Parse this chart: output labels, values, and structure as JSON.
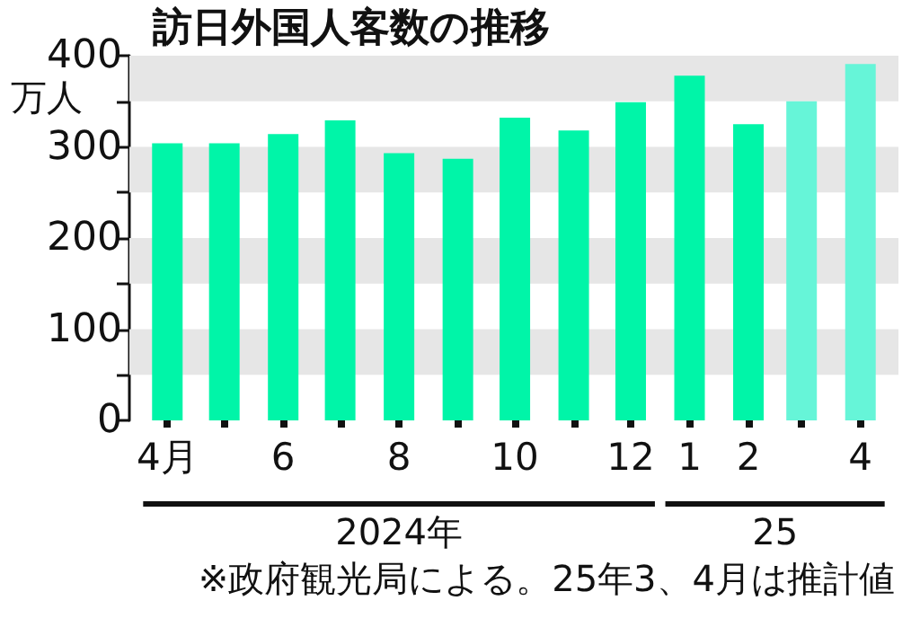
{
  "chart_data": {
    "type": "bar",
    "title": "訪日外国人客数の推移",
    "ylabel": "万人",
    "x": [
      "2024-04",
      "2024-05",
      "2024-06",
      "2024-07",
      "2024-08",
      "2024-09",
      "2024-10",
      "2024-11",
      "2024-12",
      "2025-01",
      "2025-02",
      "2025-03",
      "2025-04"
    ],
    "values": [
      304,
      304,
      314,
      329,
      293,
      287,
      332,
      318,
      349,
      378,
      325,
      350,
      391
    ],
    "colors": [
      "#00f5a8",
      "#00f5a8",
      "#00f5a8",
      "#00f5a8",
      "#00f5a8",
      "#00f5a8",
      "#00f5a8",
      "#00f5a8",
      "#00f5a8",
      "#00f5a8",
      "#00f5a8",
      "#66f5d8",
      "#66f5d8"
    ],
    "xlim": [
      "2024-03-12",
      "2025-04-21"
    ],
    "xticks": [
      {
        "value": "2024-04",
        "label": "4月"
      },
      {
        "value": "2024-05",
        "label": null
      },
      {
        "value": "2024-06",
        "label": "6"
      },
      {
        "value": "2024-07",
        "label": null
      },
      {
        "value": "2024-08",
        "label": "8"
      },
      {
        "value": "2024-09",
        "label": null
      },
      {
        "value": "2024-10",
        "label": "10"
      },
      {
        "value": "2024-11",
        "label": null
      },
      {
        "value": "2024-12",
        "label": "12"
      },
      {
        "value": "2025-01",
        "label": "1"
      },
      {
        "value": "2025-02",
        "label": "2"
      },
      {
        "value": "2025-03",
        "label": null
      },
      {
        "value": "2025-04",
        "label": "4"
      }
    ],
    "ylim": [
      0,
      400
    ],
    "yticks": [
      0,
      {
        "value": 50,
        "label": null
      },
      100,
      {
        "value": 150,
        "label": null
      },
      200,
      {
        "value": 250,
        "label": null
      },
      300,
      {
        "value": 350,
        "label": null
      },
      400
    ],
    "bands": [
      {
        "axis": "y",
        "from": 50,
        "to": 100,
        "color": "#e6e6e6"
      },
      {
        "axis": "y",
        "from": 150,
        "to": 200,
        "color": "#e6e6e6"
      },
      {
        "axis": "y",
        "from": 250,
        "to": 300,
        "color": "#e6e6e6"
      },
      {
        "axis": "y",
        "from": 350,
        "to": 400,
        "color": "#e6e6e6"
      }
    ],
    "annotations": [
      "2024年",
      "25",
      "※政府観光局による。25年3、4月は推計値"
    ]
  }
}
